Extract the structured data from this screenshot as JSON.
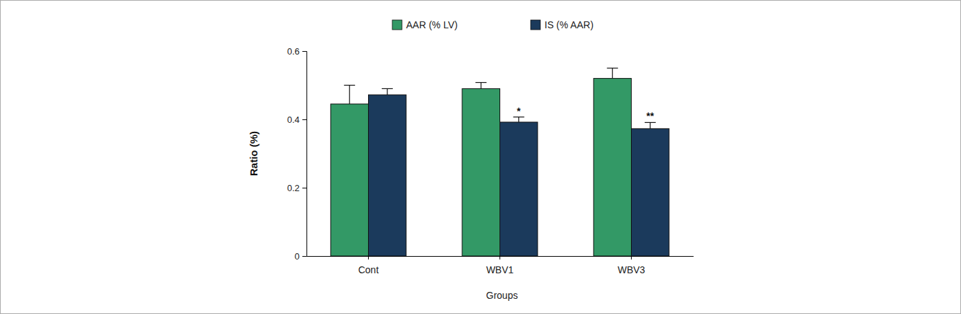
{
  "chart_data": {
    "type": "bar",
    "categories": [
      "Cont",
      "WBV1",
      "WBV3"
    ],
    "x_label": "Groups",
    "y_label": "Ratio (%)",
    "series": [
      {
        "name": "AAR (% LV)",
        "color": "#339966",
        "values": [
          0.445,
          0.49,
          0.52
        ],
        "errors": [
          0.055,
          0.018,
          0.03
        ]
      },
      {
        "name": "IS (% AAR)",
        "color": "#1b3a5c",
        "values": [
          0.472,
          0.392,
          0.373
        ],
        "errors": [
          0.018,
          0.015,
          0.018
        ]
      }
    ],
    "annotations": [
      {
        "text": "*",
        "category": 1,
        "series": 1
      },
      {
        "text": "**",
        "category": 2,
        "series": 1
      }
    ],
    "ylim": [
      0,
      0.6
    ],
    "yticks": [
      0,
      0.2,
      0.4,
      0.6
    ],
    "legend": "top",
    "grid": false
  }
}
